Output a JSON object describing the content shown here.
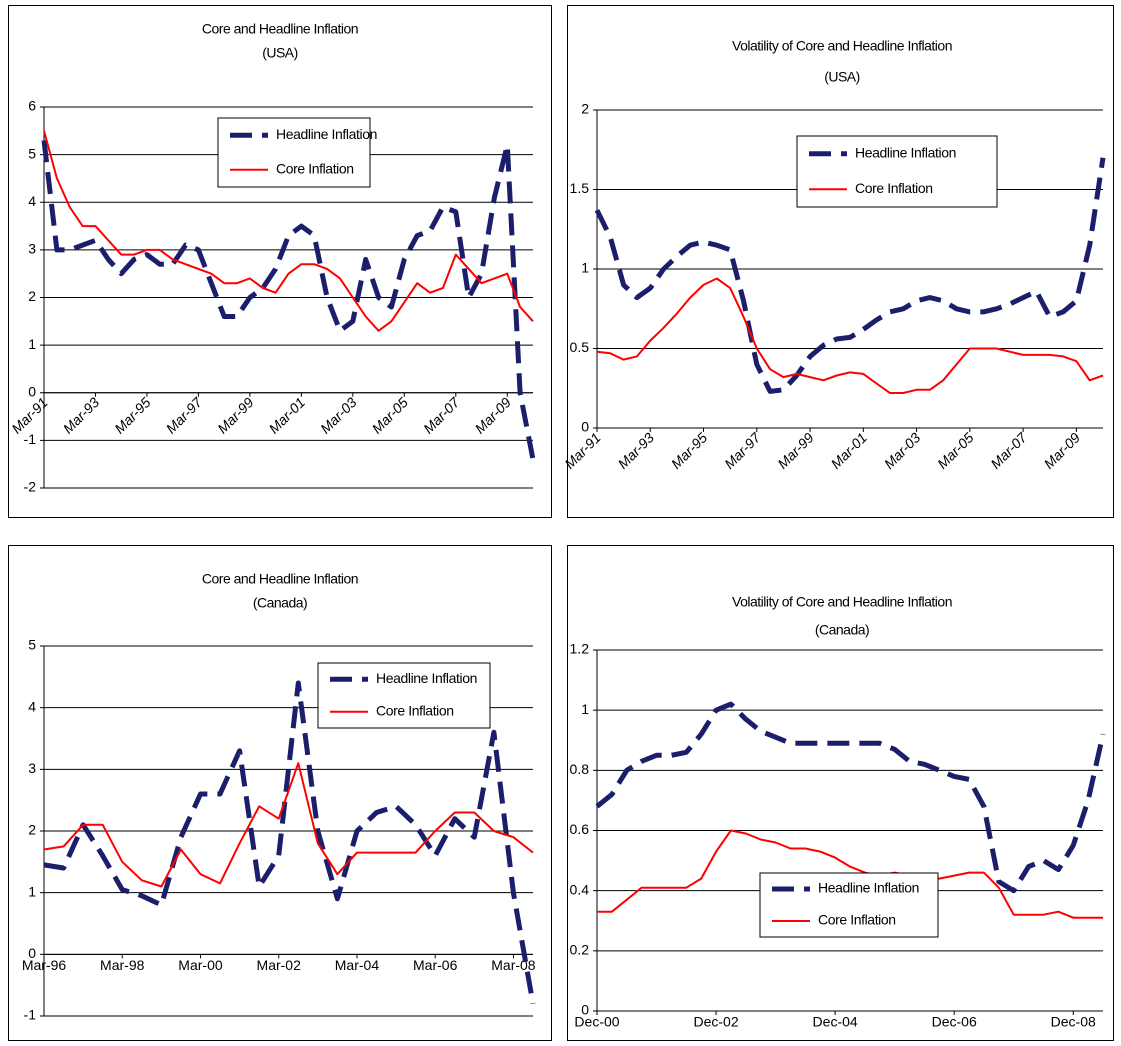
{
  "chart_data": [
    {
      "type": "line",
      "title": "Core and Headline Inflation",
      "subtitle": "(USA)",
      "categories": [
        "Mar-91",
        null,
        null,
        null,
        "Mar-93",
        null,
        null,
        null,
        "Mar-95",
        null,
        null,
        null,
        "Mar-97",
        null,
        null,
        null,
        "Mar-99",
        null,
        null,
        null,
        "Mar-01",
        null,
        null,
        null,
        "Mar-03",
        null,
        null,
        null,
        "Mar-05",
        null,
        null,
        null,
        "Mar-07",
        null,
        null,
        null,
        "Mar-09",
        null,
        null
      ],
      "series": [
        {
          "name": "Headline Inflation",
          "color": "#1b1f6b",
          "line_style": "dashed",
          "values": [
            5.3,
            3.0,
            3.0,
            3.1,
            3.2,
            2.8,
            2.5,
            2.8,
            2.9,
            2.7,
            2.7,
            3.1,
            3.0,
            2.3,
            1.6,
            1.6,
            2.0,
            2.2,
            2.6,
            3.3,
            3.5,
            3.3,
            2.0,
            1.3,
            1.5,
            2.8,
            2.0,
            1.8,
            2.8,
            3.3,
            3.4,
            3.9,
            3.8,
            2.0,
            2.5,
            4.1,
            5.2,
            0,
            -1.4
          ]
        },
        {
          "name": "Core Inflation",
          "color": "#ff0000",
          "line_style": "solid",
          "values": [
            5.5,
            4.5,
            3.9,
            3.5,
            3.5,
            3.2,
            2.9,
            2.9,
            3.0,
            3.0,
            2.8,
            2.7,
            2.6,
            2.5,
            2.3,
            2.3,
            2.4,
            2.2,
            2.1,
            2.5,
            2.7,
            2.7,
            2.6,
            2.4,
            2.0,
            1.6,
            1.3,
            1.5,
            1.9,
            2.3,
            2.1,
            2.2,
            2.9,
            2.6,
            2.3,
            2.4,
            2.5,
            1.8,
            1.5
          ]
        }
      ],
      "ylim": [
        -2,
        6
      ],
      "yticks": [
        -2,
        -1,
        0,
        1,
        2,
        3,
        4,
        5,
        6
      ],
      "grid": true,
      "legend": "top",
      "x_label_rotation": -45
    },
    {
      "type": "line",
      "title": "Volatility of Core and Headline Inflation",
      "subtitle": "(USA)",
      "categories": [
        "Mar-91",
        null,
        null,
        null,
        "Mar-93",
        null,
        null,
        null,
        "Mar-95",
        null,
        null,
        null,
        "Mar-97",
        null,
        null,
        null,
        "Mar-99",
        null,
        null,
        null,
        "Mar-01",
        null,
        null,
        null,
        "Mar-03",
        null,
        null,
        null,
        "Mar-05",
        null,
        null,
        null,
        "Mar-07",
        null,
        null,
        null,
        "Mar-09",
        null,
        null
      ],
      "series": [
        {
          "name": "Headline Inflation",
          "color": "#1b1f6b",
          "line_style": "dashed",
          "values": [
            1.37,
            1.2,
            0.9,
            0.82,
            0.88,
            1,
            1.08,
            1.15,
            1.17,
            1.15,
            1.12,
            0.8,
            0.4,
            0.23,
            0.24,
            0.33,
            0.45,
            0.52,
            0.56,
            0.57,
            0.62,
            0.68,
            0.73,
            0.75,
            0.8,
            0.82,
            0.8,
            0.75,
            0.73,
            0.73,
            0.75,
            0.78,
            0.82,
            0.86,
            0.7,
            0.73,
            0.8,
            1.15,
            1.7
          ]
        },
        {
          "name": "Core Inflation",
          "color": "#ff0000",
          "line_style": "solid",
          "values": [
            0.48,
            0.47,
            0.43,
            0.45,
            0.55,
            0.63,
            0.72,
            0.82,
            0.9,
            0.94,
            0.88,
            0.7,
            0.5,
            0.37,
            0.32,
            0.34,
            0.32,
            0.3,
            0.33,
            0.35,
            0.34,
            0.28,
            0.22,
            0.22,
            0.24,
            0.24,
            0.3,
            0.4,
            0.5,
            0.5,
            0.5,
            0.48,
            0.46,
            0.46,
            0.46,
            0.45,
            0.42,
            0.3,
            0.33
          ]
        }
      ],
      "ylim": [
        0,
        2
      ],
      "yticks": [
        0,
        0.5,
        1,
        1.5,
        2
      ],
      "grid": true,
      "legend": "top",
      "x_label_rotation": -45
    },
    {
      "type": "line",
      "title": "Core and Headline Inflation",
      "subtitle": "(Canada)",
      "categories": [
        "Mar-96",
        null,
        null,
        null,
        "Mar-98",
        null,
        null,
        null,
        "Mar-00",
        null,
        null,
        null,
        "Mar-02",
        null,
        null,
        null,
        "Mar-04",
        null,
        null,
        null,
        "Mar-06",
        null,
        null,
        null,
        "Mar-08",
        null
      ],
      "series": [
        {
          "name": "Headline Inflation",
          "color": "#1b1f6b",
          "line_style": "dashed",
          "values": [
            1.45,
            1.4,
            2.1,
            1.6,
            1.05,
            0.95,
            0.8,
            1.9,
            2.6,
            2.6,
            3.3,
            1.1,
            1.6,
            4.4,
            2,
            0.9,
            2,
            2.3,
            2.4,
            2.1,
            1.6,
            2.2,
            1.9,
            3.6,
            1,
            -0.8
          ]
        },
        {
          "name": "Core Inflation",
          "color": "#ff0000",
          "line_style": "solid",
          "values": [
            1.7,
            1.75,
            2.1,
            2.1,
            1.5,
            1.2,
            1.1,
            1.7,
            1.3,
            1.15,
            1.8,
            2.4,
            2.2,
            3.1,
            1.8,
            1.3,
            1.65,
            1.65,
            1.65,
            1.65,
            2,
            2.3,
            2.3,
            2,
            1.9,
            1.65
          ]
        }
      ],
      "ylim": [
        -1,
        5
      ],
      "yticks": [
        -1,
        0,
        1,
        2,
        3,
        4,
        5
      ],
      "grid": true,
      "legend": "top",
      "x_label_rotation": 0
    },
    {
      "type": "line",
      "title": "Volatility of Core and Headline Inflation",
      "subtitle": "(Canada)",
      "categories": [
        "Dec-00",
        null,
        null,
        null,
        null,
        null,
        null,
        null,
        "Dec-02",
        null,
        null,
        null,
        null,
        null,
        null,
        null,
        "Dec-04",
        null,
        null,
        null,
        null,
        null,
        null,
        null,
        "Dec-06",
        null,
        null,
        null,
        null,
        null,
        null,
        null,
        "Dec-08",
        null,
        null
      ],
      "series": [
        {
          "name": "Headline Inflation",
          "color": "#1b1f6b",
          "line_style": "dashed",
          "values": [
            0.68,
            0.72,
            0.8,
            0.83,
            0.85,
            0.85,
            0.86,
            0.92,
            1,
            1.02,
            0.97,
            0.93,
            0.91,
            0.89,
            0.89,
            0.89,
            0.89,
            0.89,
            0.89,
            0.89,
            0.87,
            0.83,
            0.82,
            0.8,
            0.78,
            0.77,
            0.68,
            0.43,
            0.4,
            0.48,
            0.5,
            0.47,
            0.55,
            0.7,
            0.92
          ]
        },
        {
          "name": "Core Inflation",
          "color": "#ff0000",
          "line_style": "solid",
          "values": [
            0.33,
            0.33,
            0.37,
            0.41,
            0.41,
            0.41,
            0.41,
            0.44,
            0.53,
            0.6,
            0.59,
            0.57,
            0.56,
            0.54,
            0.54,
            0.53,
            0.51,
            0.48,
            0.46,
            0.45,
            0.46,
            0.45,
            0.44,
            0.44,
            0.45,
            0.46,
            0.46,
            0.41,
            0.32,
            0.32,
            0.32,
            0.33,
            0.31,
            0.31,
            0.31
          ]
        }
      ],
      "ylim": [
        0,
        1.2
      ],
      "yticks": [
        0,
        0.2,
        0.4,
        0.6,
        0.8,
        1,
        1.2
      ],
      "grid": true,
      "legend": "bottom",
      "x_label_rotation": 0
    }
  ]
}
